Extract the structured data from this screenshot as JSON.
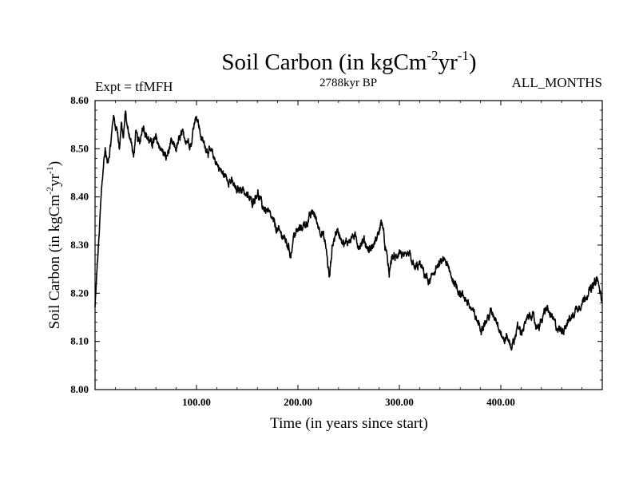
{
  "chart_data": {
    "type": "line",
    "title": {
      "main": "Soil Carbon (in kgCm",
      "sup1": "-2",
      "mid": "yr",
      "sup2": "-1",
      "end": ")"
    },
    "subtitle_left": "Expt = tfMFH",
    "subtitle_center": "2788kyr BP",
    "subtitle_right": "ALL_MONTHS",
    "xlabel": "Time (in years since start)",
    "ylabel": {
      "main": "Soil Carbon (in kgCm",
      "sup1": "-2",
      "mid": "yr",
      "sup2": "-1",
      "end": ")"
    },
    "xlim": [
      0,
      500
    ],
    "ylim": [
      8.0,
      8.6
    ],
    "x_ticks": [
      100,
      200,
      300,
      400
    ],
    "x_tick_labels": [
      "100.00",
      "200.00",
      "300.00",
      "400.00"
    ],
    "y_ticks": [
      8.0,
      8.1,
      8.2,
      8.3,
      8.4,
      8.5,
      8.6
    ],
    "y_tick_labels": [
      "8.00",
      "8.10",
      "8.20",
      "8.30",
      "8.40",
      "8.50",
      "8.60"
    ],
    "grid": false,
    "series": [
      {
        "name": "Soil Carbon",
        "color": "#000000",
        "x": [
          0,
          2,
          4,
          6,
          8,
          10,
          12,
          14,
          16,
          18,
          20,
          22,
          24,
          26,
          28,
          30,
          32,
          34,
          36,
          38,
          40,
          42,
          44,
          46,
          48,
          50,
          55,
          60,
          65,
          70,
          75,
          80,
          85,
          90,
          95,
          98,
          100,
          102,
          105,
          110,
          115,
          120,
          125,
          130,
          135,
          140,
          145,
          150,
          155,
          160,
          165,
          170,
          175,
          180,
          185,
          190,
          193,
          196,
          200,
          205,
          210,
          215,
          220,
          225,
          228,
          231,
          234,
          238,
          242,
          246,
          250,
          255,
          260,
          265,
          270,
          275,
          280,
          283,
          285,
          288,
          290,
          293,
          296,
          300,
          305,
          310,
          315,
          320,
          325,
          330,
          335,
          340,
          345,
          350,
          355,
          360,
          365,
          370,
          375,
          380,
          385,
          390,
          395,
          400,
          403,
          406,
          410,
          413,
          416,
          420,
          425,
          430,
          435,
          440,
          445,
          450,
          455,
          460,
          465,
          470,
          475,
          480,
          485,
          490,
          495,
          500
        ],
        "values": [
          8.17,
          8.25,
          8.32,
          8.4,
          8.46,
          8.5,
          8.47,
          8.49,
          8.52,
          8.57,
          8.55,
          8.54,
          8.5,
          8.55,
          8.52,
          8.58,
          8.54,
          8.53,
          8.51,
          8.48,
          8.53,
          8.52,
          8.51,
          8.54,
          8.55,
          8.53,
          8.51,
          8.52,
          8.5,
          8.48,
          8.51,
          8.5,
          8.53,
          8.52,
          8.51,
          8.56,
          8.57,
          8.55,
          8.52,
          8.5,
          8.49,
          8.47,
          8.45,
          8.44,
          8.43,
          8.41,
          8.42,
          8.4,
          8.39,
          8.41,
          8.38,
          8.37,
          8.35,
          8.33,
          8.32,
          8.3,
          8.28,
          8.32,
          8.33,
          8.34,
          8.35,
          8.37,
          8.34,
          8.32,
          8.29,
          8.23,
          8.3,
          8.33,
          8.32,
          8.3,
          8.31,
          8.32,
          8.3,
          8.31,
          8.29,
          8.3,
          8.33,
          8.35,
          8.31,
          8.27,
          8.24,
          8.28,
          8.27,
          8.29,
          8.27,
          8.28,
          8.25,
          8.26,
          8.24,
          8.22,
          8.25,
          8.26,
          8.27,
          8.24,
          8.22,
          8.2,
          8.19,
          8.17,
          8.15,
          8.13,
          8.14,
          8.16,
          8.15,
          8.12,
          8.1,
          8.11,
          8.09,
          8.1,
          8.13,
          8.12,
          8.14,
          8.16,
          8.13,
          8.14,
          8.17,
          8.15,
          8.13,
          8.12,
          8.14,
          8.15,
          8.17,
          8.18,
          8.2,
          8.21,
          8.23,
          8.18
        ]
      }
    ]
  }
}
